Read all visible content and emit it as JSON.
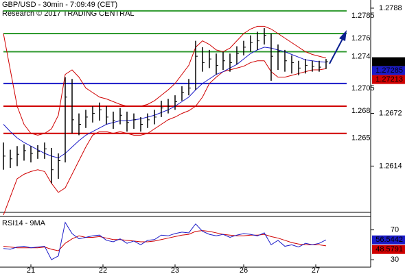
{
  "chart_data": {
    "type": "ohlc",
    "title": "GBP/USD - 30min - 7:09:49 (CET)",
    "subtitle": "Research © 2017 TRADING CENTRAL",
    "xlim": [
      -0.5,
      53.5
    ],
    "xticks": [
      {
        "value": 4,
        "label": "21"
      },
      {
        "value": 14.5,
        "label": "22"
      },
      {
        "value": 25,
        "label": "23"
      },
      {
        "value": 35,
        "label": "26"
      },
      {
        "value": 45.5,
        "label": "27"
      }
    ],
    "ylim": [
      1.2563,
      1.2797
    ],
    "yticks": [
      1.2788,
      1.2672,
      1.2614
    ],
    "bar_color": "#000000",
    "high": [
      1.264,
      1.2632,
      1.2636,
      1.2638,
      1.2636,
      1.2637,
      1.264,
      1.2634,
      1.2628,
      1.2712,
      1.271,
      1.2672,
      1.2676,
      1.268,
      1.2684,
      1.268,
      1.2674,
      1.2678,
      1.2674,
      1.2672,
      1.2668,
      1.2672,
      1.2676,
      1.2686,
      1.2688,
      1.2692,
      1.2702,
      1.271,
      1.2752,
      1.2745,
      1.2742,
      1.2738,
      1.274,
      1.2738,
      1.2746,
      1.2752,
      1.2758,
      1.2762,
      1.2766,
      1.276,
      1.2748,
      1.2742,
      1.2736,
      1.273,
      1.2732,
      1.273,
      1.273,
      1.2732
    ],
    "low": [
      1.261,
      1.2612,
      1.2614,
      1.262,
      1.2618,
      1.2622,
      1.2622,
      1.2595,
      1.26,
      1.2618,
      1.265,
      1.2648,
      1.2656,
      1.2662,
      1.2664,
      1.266,
      1.2655,
      1.266,
      1.2652,
      1.2655,
      1.2652,
      1.2656,
      1.266,
      1.2668,
      1.2672,
      1.2676,
      1.2686,
      1.2692,
      1.2698,
      1.2718,
      1.2722,
      1.2715,
      1.272,
      1.2718,
      1.2726,
      1.2736,
      1.274,
      1.2742,
      1.2748,
      1.2708,
      1.272,
      1.2718,
      1.2716,
      1.2714,
      1.2716,
      1.2718,
      1.2718,
      1.2721
    ],
    "close": [
      1.2625,
      1.2622,
      1.2627,
      1.2631,
      1.2628,
      1.263,
      1.2633,
      1.261,
      1.262,
      1.269,
      1.2665,
      1.266,
      1.2668,
      1.2672,
      1.2676,
      1.2668,
      1.2664,
      1.267,
      1.2662,
      1.2665,
      1.266,
      1.2665,
      1.2668,
      1.2678,
      1.268,
      1.2685,
      1.2695,
      1.27,
      1.2735,
      1.2728,
      1.2732,
      1.2725,
      1.273,
      1.2728,
      1.2738,
      1.2745,
      1.275,
      1.2752,
      1.2758,
      1.2735,
      1.274,
      1.273,
      1.2728,
      1.2722,
      1.2725,
      1.2724,
      1.2723,
      1.2729
    ],
    "band_color": "#d00000",
    "bb_upper": [
      1.276,
      1.272,
      1.268,
      1.266,
      1.265,
      1.2648,
      1.265,
      1.2655,
      1.267,
      1.2715,
      1.272,
      1.2712,
      1.27,
      1.2695,
      1.269,
      1.2688,
      1.2685,
      1.2682,
      1.268,
      1.268,
      1.268,
      1.2682,
      1.2686,
      1.2692,
      1.2698,
      1.2705,
      1.2715,
      1.2725,
      1.2745,
      1.2752,
      1.2748,
      1.2742,
      1.274,
      1.2744,
      1.2752,
      1.276,
      1.2765,
      1.2768,
      1.2768,
      1.2765,
      1.276,
      1.2755,
      1.275,
      1.2745,
      1.274,
      1.2737,
      1.2735,
      1.2733
    ],
    "bb_lower": [
      1.256,
      1.258,
      1.26,
      1.2605,
      1.2608,
      1.261,
      1.2608,
      1.2595,
      1.2585,
      1.259,
      1.2605,
      1.262,
      1.2635,
      1.2648,
      1.2652,
      1.2652,
      1.265,
      1.2652,
      1.265,
      1.2648,
      1.2648,
      1.265,
      1.2655,
      1.266,
      1.2665,
      1.2668,
      1.2672,
      1.2675,
      1.268,
      1.269,
      1.2705,
      1.2712,
      1.2718,
      1.272,
      1.2722,
      1.2724,
      1.2728,
      1.273,
      1.273,
      1.2718,
      1.2712,
      1.2712,
      1.2714,
      1.2716,
      1.2718,
      1.272,
      1.272,
      1.27213
    ],
    "ma_color": "#1a1ac8",
    "ma": [
      1.266,
      1.2652,
      1.2645,
      1.264,
      1.2636,
      1.2632,
      1.2628,
      1.2625,
      1.2623,
      1.2628,
      1.2635,
      1.2642,
      1.2648,
      1.2652,
      1.2656,
      1.266,
      1.2662,
      1.2664,
      1.2664,
      1.2665,
      1.2666,
      1.2668,
      1.267,
      1.2673,
      1.2676,
      1.268,
      1.2685,
      1.269,
      1.2698,
      1.2705,
      1.271,
      1.2715,
      1.2718,
      1.2722,
      1.2726,
      1.2732,
      1.2738,
      1.2742,
      1.2745,
      1.2744,
      1.2742,
      1.274,
      1.2737,
      1.2734,
      1.2731,
      1.273,
      1.2729,
      1.27285
    ],
    "levels": [
      {
        "value": 1.2785,
        "color": "#2f9a2f"
      },
      {
        "value": 1.276,
        "color": "#2f9a2f"
      },
      {
        "value": 1.274,
        "color": "#2f9a2f"
      },
      {
        "value": 1.2705,
        "color": "#1a1ac8"
      },
      {
        "value": 1.268,
        "color": "#d00000"
      },
      {
        "value": 1.265,
        "color": "#d00000"
      }
    ],
    "rsi": {
      "title": "RSI14 - 9MA",
      "ylim": [
        20,
        88
      ],
      "yticks": [
        70,
        30
      ],
      "color": "#1a1ac8",
      "ma_color": "#d00000",
      "values": [
        45,
        44,
        47,
        48,
        46,
        47,
        48,
        30,
        35,
        80,
        65,
        58,
        60,
        62,
        63,
        56,
        54,
        58,
        52,
        55,
        50,
        56,
        57,
        63,
        62,
        65,
        67,
        66,
        78,
        68,
        64,
        62,
        64,
        60,
        63,
        65,
        64,
        62,
        66,
        50,
        56,
        48,
        50,
        47,
        52,
        50,
        52,
        56.5442
      ],
      "ma": [
        48,
        47,
        46,
        46,
        46,
        46,
        47,
        44,
        42,
        52,
        58,
        62,
        60,
        60,
        61,
        59,
        57,
        57,
        56,
        55,
        54,
        54,
        55,
        57,
        59,
        61,
        63,
        64,
        68,
        69,
        68,
        66,
        64,
        63,
        62,
        62,
        63,
        63,
        64,
        61,
        59,
        56,
        53,
        51,
        50,
        50,
        50,
        48.5791
      ]
    }
  }
}
